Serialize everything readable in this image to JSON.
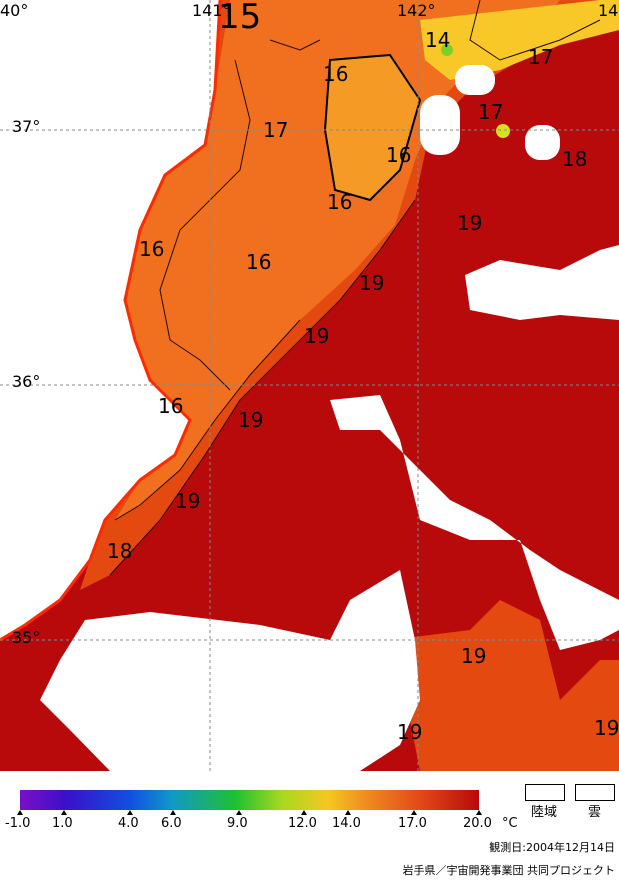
{
  "map": {
    "longitude_labels": [
      "40°",
      "141°",
      "142°",
      "14"
    ],
    "latitude_labels": [
      "37°",
      "36°",
      "35°"
    ],
    "isotherm_labels": [
      "15",
      "14",
      "17",
      "16",
      "17",
      "16",
      "17",
      "18",
      "16",
      "19",
      "16",
      "19",
      "19",
      "16",
      "19",
      "19",
      "18",
      "19",
      "19",
      "19",
      "16"
    ]
  },
  "legend": {
    "unit": "°C",
    "tick_labels": [
      "-1.0",
      "1.0",
      "4.0",
      "6.0",
      "9.0",
      "12.0",
      "14.0",
      "17.0",
      "20.0"
    ],
    "tick_values": [
      -1.0,
      1.0,
      4.0,
      6.0,
      9.0,
      12.0,
      14.0,
      17.0,
      20.0
    ],
    "land_label": "陸域",
    "cloud_label": "雲"
  },
  "colors": {
    "land": "#ffffff",
    "cloud": "#ffffff",
    "warm_19_20": "#b80a0a",
    "sst_17_18": "#e44a10",
    "sst_16": "#f07020",
    "sst_15": "#f59a25",
    "sst_14": "#f8c828"
  },
  "observation_date": "観測日:2004年12月14日",
  "credit": "岩手県／宇宙開発事業団 共同プロジェクト"
}
